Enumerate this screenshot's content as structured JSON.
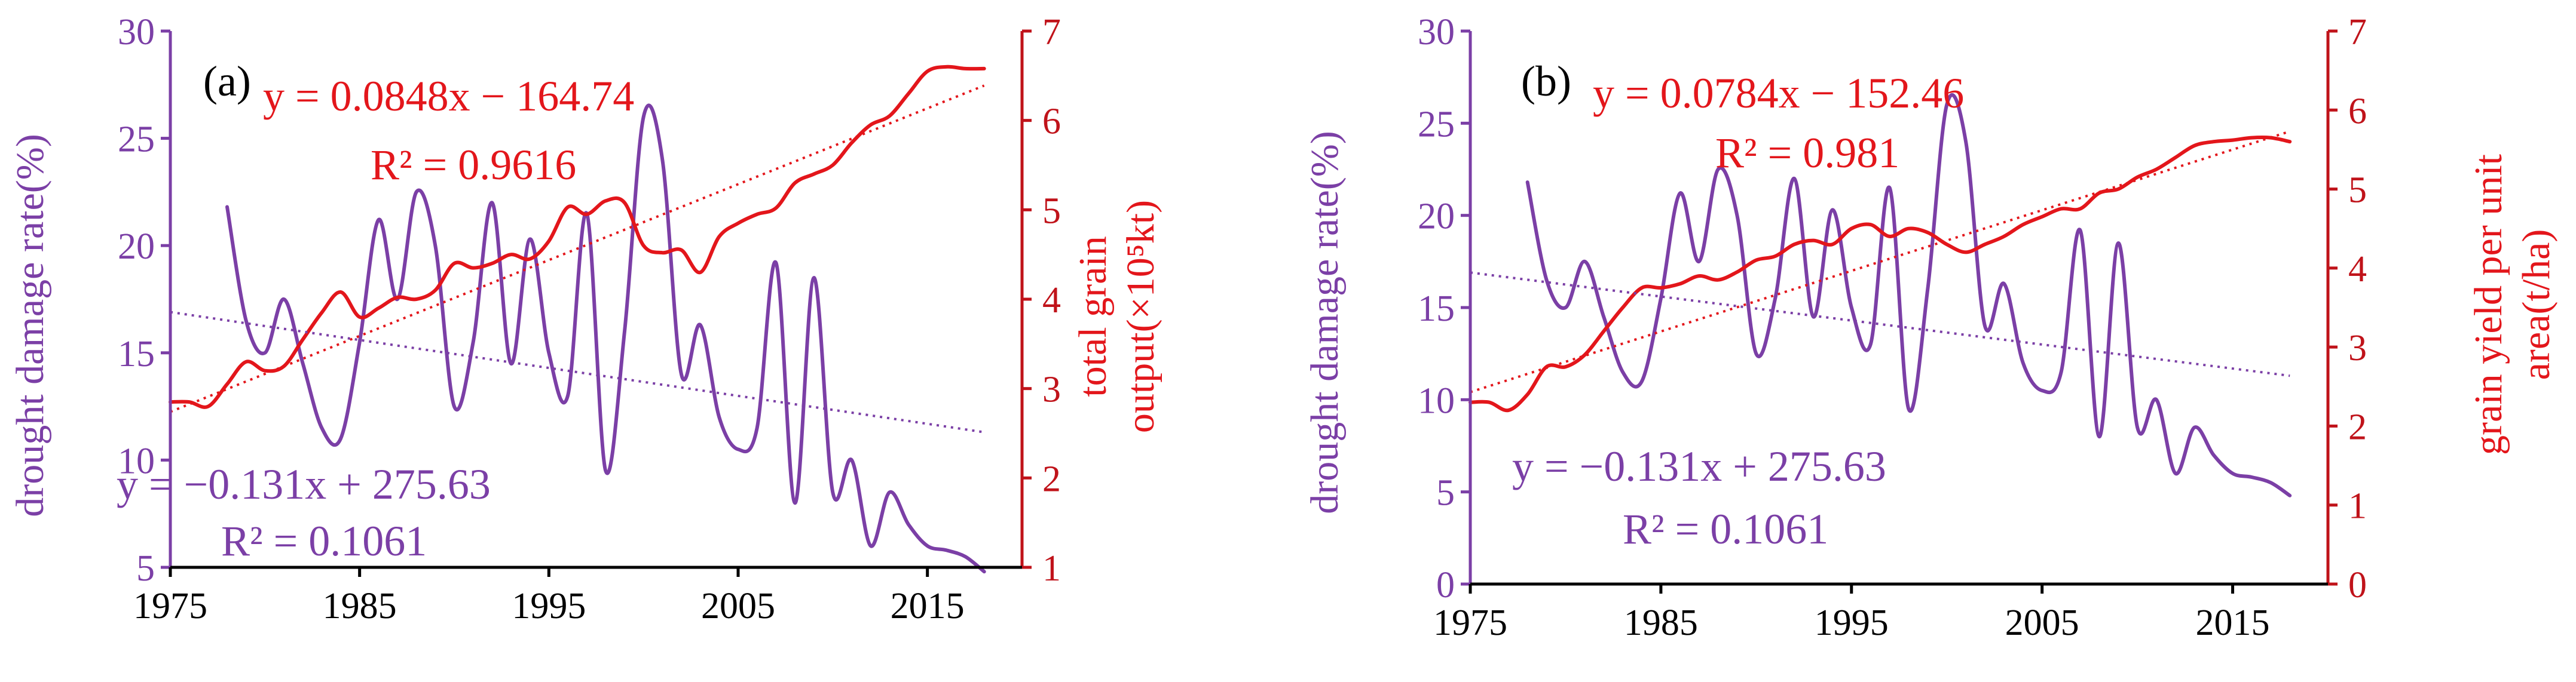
{
  "colors": {
    "drought": "#7b3fa6",
    "grain": "#e3161b",
    "axis_left": "#7b3fa6",
    "axis_right": "#c0131a",
    "tick_x": "#000000"
  },
  "chart_data": [
    {
      "type": "line",
      "panel_label": "(a)",
      "xlim": [
        1975,
        2020
      ],
      "xticks": [
        1975,
        1985,
        1995,
        2005,
        2015
      ],
      "xtick_labels": [
        "1975",
        "1985",
        "1995",
        "2005",
        "2015"
      ],
      "left_axis": {
        "label": "drought damage rate(%)",
        "ylim": [
          5,
          30
        ],
        "ticks": [
          5,
          10,
          15,
          20,
          25,
          30
        ],
        "tick_labels": [
          "5",
          "10",
          "15",
          "20",
          "25",
          "30"
        ]
      },
      "right_axis": {
        "label_line1": "total grain",
        "label_line2": "output(×10⁵kt)",
        "ylim": [
          1,
          7
        ],
        "ticks": [
          1,
          2,
          3,
          4,
          5,
          6,
          7
        ],
        "tick_labels": [
          "1",
          "2",
          "3",
          "4",
          "5",
          "6",
          "7"
        ]
      },
      "series": [
        {
          "name": "drought damage rate",
          "axis": "left",
          "style": "smooth",
          "x": [
            1978,
            1979,
            1980,
            1981,
            1982,
            1983,
            1984,
            1985,
            1986,
            1987,
            1988,
            1989,
            1990,
            1991,
            1992,
            1993,
            1994,
            1995,
            1996,
            1997,
            1998,
            1999,
            2000,
            2001,
            2002,
            2003,
            2004,
            2005,
            2006,
            2007,
            2008,
            2009,
            2010,
            2011,
            2012,
            2013,
            2014,
            2015,
            2016,
            2017,
            2018
          ],
          "values": [
            21.8,
            16.5,
            15.0,
            17.5,
            14.5,
            11.5,
            11.0,
            15.5,
            21.2,
            17.5,
            22.5,
            20.0,
            12.5,
            15.5,
            22.0,
            14.5,
            20.3,
            15.0,
            13.0,
            21.5,
            9.5,
            16.0,
            26.0,
            24.0,
            14.0,
            16.3,
            12.0,
            10.5,
            11.5,
            19.2,
            8.0,
            18.5,
            8.5,
            10.0,
            6.0,
            8.5,
            7.0,
            6.0,
            5.8,
            5.5,
            4.8
          ]
        },
        {
          "name": "total grain output",
          "axis": "right",
          "style": "smooth",
          "x": [
            1975,
            1976,
            1977,
            1978,
            1979,
            1980,
            1981,
            1982,
            1983,
            1984,
            1985,
            1986,
            1987,
            1988,
            1989,
            1990,
            1991,
            1992,
            1993,
            1994,
            1995,
            1996,
            1997,
            1998,
            1999,
            2000,
            2001,
            2002,
            2003,
            2004,
            2005,
            2006,
            2007,
            2008,
            2009,
            2010,
            2011,
            2012,
            2013,
            2014,
            2015,
            2016,
            2017,
            2018
          ],
          "values": [
            2.85,
            2.85,
            2.8,
            3.05,
            3.3,
            3.2,
            3.25,
            3.55,
            3.85,
            4.08,
            3.8,
            3.9,
            4.02,
            4.0,
            4.1,
            4.4,
            4.35,
            4.4,
            4.5,
            4.45,
            4.65,
            5.03,
            4.95,
            5.1,
            5.08,
            4.6,
            4.52,
            4.55,
            4.3,
            4.7,
            4.85,
            4.95,
            5.02,
            5.3,
            5.4,
            5.5,
            5.75,
            5.95,
            6.05,
            6.3,
            6.55,
            6.6,
            6.58,
            6.58
          ]
        },
        {
          "name": "drought trend",
          "axis": "left",
          "style": "dotted",
          "x": [
            1975,
            2018
          ],
          "values": [
            16.9,
            11.3
          ]
        },
        {
          "name": "grain trend",
          "axis": "right",
          "style": "dotted",
          "x": [
            1975,
            2018
          ],
          "values": [
            2.74,
            6.39
          ]
        }
      ],
      "annotations": {
        "drought_eq": "y = −0.131x + 275.63",
        "drought_r2": "R² = 0.1061",
        "grain_eq": "y = 0.0848x − 164.74",
        "grain_r2": "R² = 0.9616"
      }
    },
    {
      "type": "line",
      "panel_label": "(b)",
      "xlim": [
        1975,
        2020
      ],
      "xticks": [
        1975,
        1985,
        1995,
        2005,
        2015
      ],
      "xtick_labels": [
        "1975",
        "1985",
        "1995",
        "2005",
        "2015"
      ],
      "left_axis": {
        "label": "drought damage rate(%)",
        "ylim": [
          0,
          30
        ],
        "ticks": [
          0,
          5,
          10,
          15,
          20,
          25,
          30
        ],
        "tick_labels": [
          "0",
          "5",
          "10",
          "15",
          "20",
          "25",
          "30"
        ]
      },
      "right_axis": {
        "label_line1": "grain yield per unit",
        "label_line2": "area(t/ha)",
        "ylim": [
          0,
          7
        ],
        "ticks": [
          0,
          1,
          2,
          3,
          4,
          5,
          6,
          7
        ],
        "tick_labels": [
          "0",
          "1",
          "2",
          "3",
          "4",
          "5",
          "6",
          "7"
        ]
      },
      "series": [
        {
          "name": "drought damage rate",
          "axis": "left",
          "style": "smooth",
          "x": [
            1978,
            1979,
            1980,
            1981,
            1982,
            1983,
            1984,
            1985,
            1986,
            1987,
            1988,
            1989,
            1990,
            1991,
            1992,
            1993,
            1994,
            1995,
            1996,
            1997,
            1998,
            1999,
            2000,
            2001,
            2002,
            2003,
            2004,
            2005,
            2006,
            2007,
            2008,
            2009,
            2010,
            2011,
            2012,
            2013,
            2014,
            2015,
            2016,
            2017,
            2018
          ],
          "values": [
            21.8,
            16.5,
            15.0,
            17.5,
            14.5,
            11.5,
            11.0,
            15.5,
            21.2,
            17.5,
            22.5,
            20.0,
            12.5,
            15.5,
            22.0,
            14.5,
            20.3,
            15.0,
            13.0,
            21.5,
            9.5,
            16.0,
            26.0,
            24.0,
            14.0,
            16.3,
            12.0,
            10.5,
            11.5,
            19.2,
            8.0,
            18.5,
            8.5,
            10.0,
            6.0,
            8.5,
            7.0,
            6.0,
            5.8,
            5.5,
            4.8
          ]
        },
        {
          "name": "grain yield per unit area",
          "axis": "right",
          "style": "smooth",
          "x": [
            1975,
            1976,
            1977,
            1978,
            1979,
            1980,
            1981,
            1982,
            1983,
            1984,
            1985,
            1986,
            1987,
            1988,
            1989,
            1990,
            1991,
            1992,
            1993,
            1994,
            1995,
            1996,
            1997,
            1998,
            1999,
            2000,
            2001,
            2002,
            2003,
            2004,
            2005,
            2006,
            2007,
            2008,
            2009,
            2010,
            2011,
            2012,
            2013,
            2014,
            2015,
            2016,
            2017,
            2018
          ],
          "values": [
            2.3,
            2.3,
            2.2,
            2.4,
            2.75,
            2.75,
            2.9,
            3.2,
            3.5,
            3.75,
            3.75,
            3.8,
            3.9,
            3.85,
            3.95,
            4.1,
            4.15,
            4.3,
            4.35,
            4.3,
            4.5,
            4.55,
            4.4,
            4.5,
            4.45,
            4.3,
            4.2,
            4.3,
            4.4,
            4.55,
            4.65,
            4.75,
            4.75,
            4.95,
            5.0,
            5.15,
            5.25,
            5.4,
            5.55,
            5.6,
            5.62,
            5.65,
            5.65,
            5.6
          ]
        },
        {
          "name": "drought trend",
          "axis": "left",
          "style": "dotted",
          "x": [
            1975,
            2018
          ],
          "values": [
            16.9,
            11.3
          ]
        },
        {
          "name": "yield trend",
          "axis": "right",
          "style": "dotted",
          "x": [
            1975,
            2018
          ],
          "values": [
            2.43,
            5.73
          ]
        }
      ],
      "annotations": {
        "drought_eq": "y = −0.131x + 275.63",
        "drought_r2": "R² = 0.1061",
        "grain_eq": "y = 0.0784x − 152.46",
        "grain_r2": "R² = 0.981"
      }
    }
  ]
}
